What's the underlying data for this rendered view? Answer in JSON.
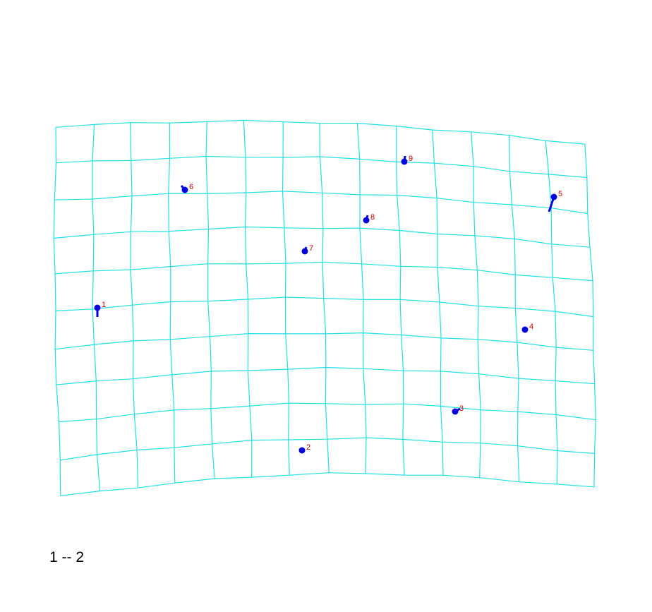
{
  "caption": "1 -- 2",
  "colors": {
    "grid": "#22e0e0",
    "landmark": "#0000dd",
    "label": "#cc0000"
  },
  "landmarks": [
    {
      "id": "1",
      "label": "1"
    },
    {
      "id": "2",
      "label": "2"
    },
    {
      "id": "3",
      "label": "3"
    },
    {
      "id": "4",
      "label": "4"
    },
    {
      "id": "5",
      "label": "5"
    },
    {
      "id": "6",
      "label": "6"
    },
    {
      "id": "7",
      "label": "7"
    },
    {
      "id": "8",
      "label": "8"
    },
    {
      "id": "9",
      "label": "9"
    }
  ]
}
